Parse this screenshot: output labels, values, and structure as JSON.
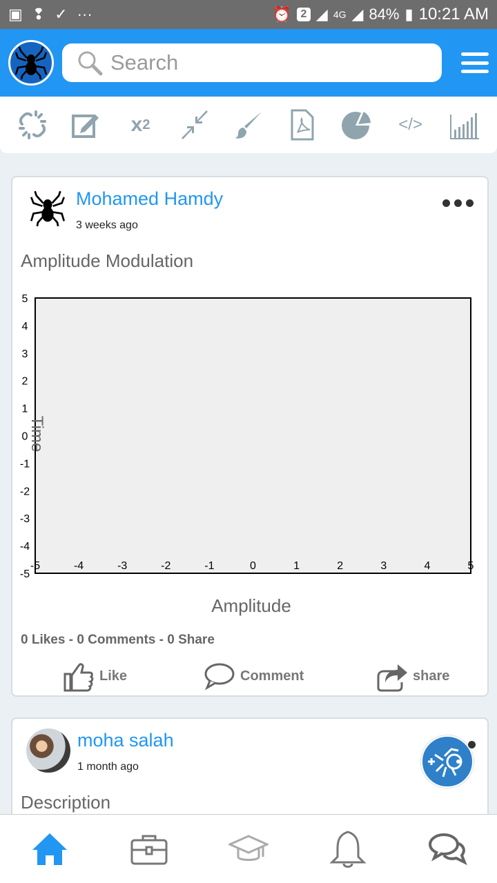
{
  "status_bar": {
    "badge": "2",
    "network": "4G",
    "battery": "84%",
    "time": "10:21 AM"
  },
  "app_bar": {
    "search_placeholder": "Search"
  },
  "toolbar": {
    "icons": [
      "unlink-icon",
      "edit-icon",
      "superscript-icon",
      "compress-icon",
      "brush-icon",
      "pdf-file-icon",
      "pie-chart-icon",
      "code-icon",
      "bar-chart-icon"
    ],
    "code_label": "</>",
    "superscript_base": "x",
    "superscript_exp": "2"
  },
  "posts": [
    {
      "author": "Mohamed Hamdy",
      "time": "3 weeks ago",
      "title": "Amplitude Modulation",
      "stats": "0 Likes - 0 Comments - 0 Share",
      "actions": {
        "like": "Like",
        "comment": "Comment",
        "share": "share"
      }
    },
    {
      "author": "moha salah",
      "time": "1 month ago",
      "title": "Description"
    }
  ],
  "chart_data": {
    "type": "line",
    "title": "",
    "xlabel": "Amplitude",
    "ylabel": "Time",
    "xlim": [
      -5,
      5
    ],
    "ylim": [
      -5,
      5
    ],
    "x_ticks": [
      -5,
      -4,
      -3,
      -2,
      -1,
      0,
      1,
      2,
      3,
      4,
      5
    ],
    "y_ticks": [
      5,
      4,
      3,
      2,
      1,
      0,
      -1,
      -2,
      -3,
      -4,
      -5
    ],
    "series": [],
    "background": "#efefef",
    "grid": false
  },
  "colors": {
    "primary": "#2196f3",
    "icon_gray": "#90a4ae"
  }
}
